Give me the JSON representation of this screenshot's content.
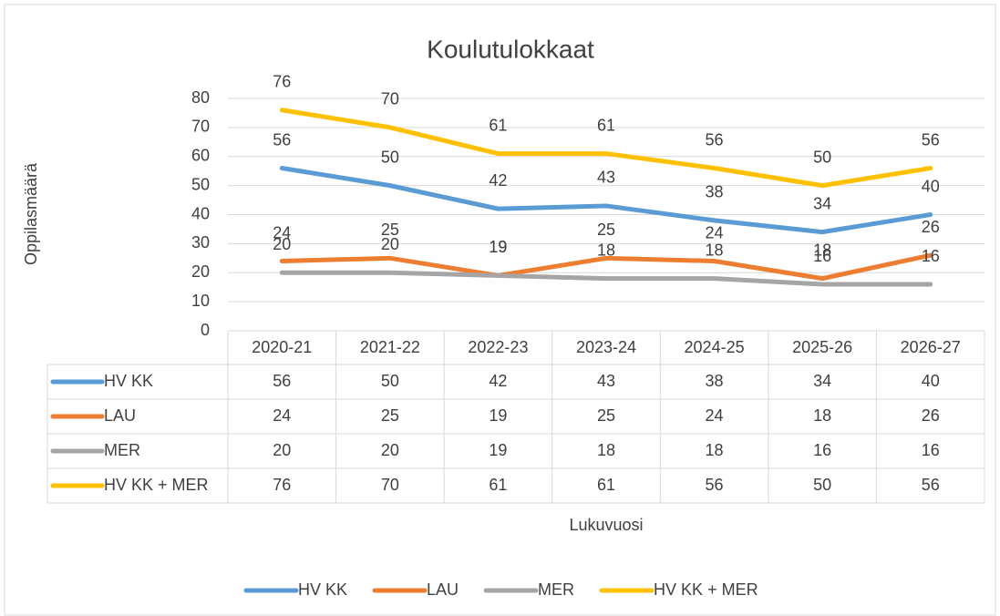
{
  "chart_data": {
    "type": "line",
    "title": "Koulutulokkaat",
    "x_label": "Lukuvuosi",
    "y_label": "Oppilasmäärä",
    "categories": [
      "2020-21",
      "2021-22",
      "2022-23",
      "2023-24",
      "2024-25",
      "2025-26",
      "2026-27"
    ],
    "series": [
      {
        "name": "HV KK",
        "color": "#5b9bd5",
        "values": [
          56,
          50,
          42,
          43,
          38,
          34,
          40
        ]
      },
      {
        "name": "LAU",
        "color": "#ed7d31",
        "values": [
          24,
          25,
          19,
          25,
          24,
          18,
          26
        ]
      },
      {
        "name": "MER",
        "color": "#a5a5a5",
        "values": [
          20,
          20,
          19,
          18,
          18,
          16,
          16
        ]
      },
      {
        "name": "HV KK + MER",
        "color": "#ffc000",
        "values": [
          76,
          70,
          61,
          61,
          56,
          50,
          56
        ]
      }
    ],
    "ylim": [
      0,
      80
    ],
    "yticks": [
      0,
      10,
      20,
      30,
      40,
      50,
      60,
      70,
      80
    ],
    "grid": true,
    "legend": "bottom",
    "data_table": true
  }
}
